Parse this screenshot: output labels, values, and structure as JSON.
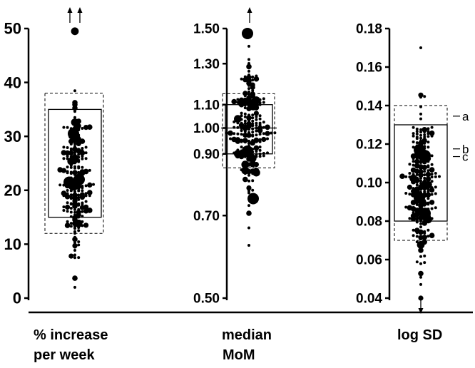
{
  "chart_data": [
    {
      "type": "scatter",
      "subtype": "bubble-beeswarm-with-box",
      "title": "",
      "xlabel": [
        "% increase",
        "per week"
      ],
      "ylabel": "",
      "yscale": "linear",
      "ylim": [
        0,
        50
      ],
      "yticks": [
        0,
        10,
        20,
        30,
        40,
        50
      ],
      "ytick_labels": [
        "0",
        "10",
        "20",
        "30",
        "40",
        "50"
      ],
      "box": {
        "lower": 15,
        "upper": 35
      },
      "dashed_box": {
        "lower": 12,
        "upper": 38
      },
      "off_scale_markers": {
        "direction": "up",
        "count": 2
      },
      "large_points": [
        21,
        21.5,
        30.5,
        22
      ],
      "distribution": {
        "center": 21.5,
        "min": 2,
        "max": 49.5,
        "n_points_approx": 200
      }
    },
    {
      "type": "scatter",
      "subtype": "bubble-beeswarm-with-box",
      "title": "",
      "xlabel": [
        "median",
        "MoM"
      ],
      "ylabel": "",
      "yscale": "log",
      "ylim": [
        0.5,
        1.5
      ],
      "yticks": [
        0.5,
        0.7,
        0.9,
        1.0,
        1.1,
        1.3,
        1.5
      ],
      "ytick_labels": [
        "0.50",
        "0.70",
        "0.90",
        "1.00",
        "1.10",
        "1.30",
        "1.50"
      ],
      "box": {
        "lower": 0.9,
        "upper": 1.1
      },
      "dashed_box": {
        "lower": 0.85,
        "upper": 1.15
      },
      "off_scale_markers": {
        "direction": "up",
        "count": 1
      },
      "large_points": [
        1.47,
        0.75,
        0.91,
        1.1
      ],
      "distribution": {
        "center": 1.0,
        "min": 0.62,
        "max": 1.47,
        "n_points_approx": 200
      }
    },
    {
      "type": "scatter",
      "subtype": "bubble-beeswarm-with-box",
      "title": "",
      "xlabel": [
        "log SD"
      ],
      "ylabel": "",
      "yscale": "linear",
      "ylim": [
        0.04,
        0.18
      ],
      "yticks": [
        0.04,
        0.06,
        0.08,
        0.1,
        0.12,
        0.14,
        0.16,
        0.18
      ],
      "ytick_labels": [
        "0.04",
        "0.06",
        "0.08",
        "0.10",
        "0.12",
        "0.14",
        "0.16",
        "0.18"
      ],
      "box": {
        "lower": 0.08,
        "upper": 0.13
      },
      "dashed_box": {
        "lower": 0.07,
        "upper": 0.14
      },
      "off_scale_markers": {
        "direction": "down",
        "count": 1
      },
      "large_points": [
        0.117,
        0.114,
        0.092,
        0.084
      ],
      "distribution": {
        "center": 0.1,
        "min": 0.04,
        "max": 0.17,
        "n_points_approx": 220
      },
      "annotations": [
        {
          "label": "a",
          "y": 0.1345
        },
        {
          "label": "b",
          "y": 0.1175
        },
        {
          "label": "c",
          "y": 0.1135
        }
      ]
    }
  ],
  "colors": {
    "ink": "#000000",
    "background": "#ffffff"
  }
}
